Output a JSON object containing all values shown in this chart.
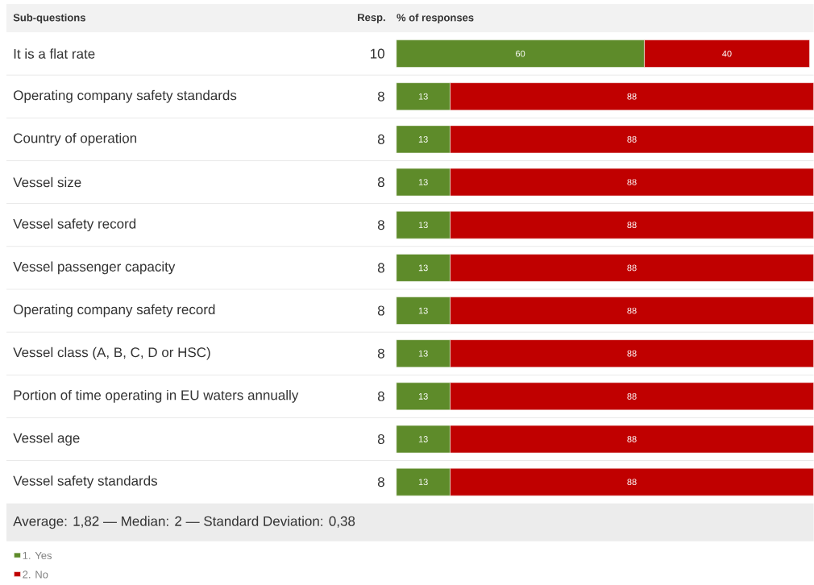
{
  "chart_data": {
    "type": "bar",
    "orientation": "horizontal",
    "stacked": true,
    "categories": [
      "It is a flat rate",
      "Operating company safety standards",
      "Country of operation",
      "Vessel size",
      "Vessel safety record",
      "Vessel passenger capacity",
      "Operating company safety record",
      "Vessel class (A, B, C, D or HSC)",
      "Portion of time operating in EU waters annually",
      "Vessel age",
      "Vessel safety standards"
    ],
    "series": [
      {
        "name": "1. Yes",
        "color": "#5e8b2a",
        "values": [
          60,
          13,
          13,
          13,
          13,
          13,
          13,
          13,
          13,
          13,
          13
        ]
      },
      {
        "name": "2. No",
        "color": "#c00000",
        "values": [
          40,
          88,
          88,
          88,
          88,
          88,
          88,
          88,
          88,
          88,
          88
        ]
      }
    ],
    "data_labels": true,
    "tick_labels": "y",
    "legend": "bottom left",
    "annotations": [
      "Sub-questions",
      "Resp.",
      "% of responses",
      "10",
      "8",
      "8",
      "8",
      "8",
      "8",
      "8",
      "8",
      "8",
      "8",
      "8",
      "Average: 1,82 — Median: 2 — Standard Deviation: 0,38"
    ]
  }
}
